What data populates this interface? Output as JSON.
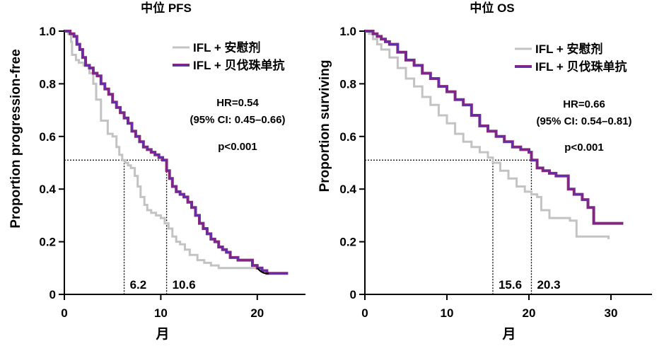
{
  "colors": {
    "placebo": "#c3c3c3",
    "bev_outer": "#8a2a72",
    "bev_inner": "#5a2bbf",
    "axis": "#000000",
    "black_tail": "#000000"
  },
  "chart_data": [
    {
      "type": "line",
      "title": "中位 PFS",
      "xlabel": "月",
      "ylabel": "Proportion progression-free",
      "xlim": [
        0,
        25
      ],
      "ylim": [
        0,
        1.0
      ],
      "xticks": [
        0,
        10,
        20
      ],
      "yticks": [
        0,
        0.2,
        0.4,
        0.6,
        0.8,
        1.0
      ],
      "ytick_labels": [
        "0",
        "0.2",
        "0.4",
        "0.6",
        "0.8",
        "1.0"
      ],
      "legend": [
        "IFL + 安慰剂",
        "IFL + 贝伐珠单抗"
      ],
      "stats": [
        "HR=0.54",
        "(95% CI: 0.45–0.66)",
        "p<0.001"
      ],
      "median_line_y": 0.51,
      "medians": [
        {
          "x": 6.2,
          "label": "6.2"
        },
        {
          "x": 10.6,
          "label": "10.6"
        }
      ],
      "series": [
        {
          "name": "IFL + 安慰剂",
          "x": [
            0,
            0.4,
            0.7,
            0.8,
            1.2,
            1.5,
            2.0,
            2.6,
            3.0,
            3.3,
            3.8,
            4.5,
            5.0,
            5.4,
            5.7,
            6.0,
            6.3,
            6.6,
            6.9,
            7.3,
            7.6,
            7.9,
            8.3,
            8.6,
            9.0,
            9.5,
            10.0,
            10.4,
            10.8,
            11.2,
            11.6,
            12.0,
            12.5,
            13.0,
            13.8,
            14.5,
            15.2,
            16.0,
            17.0,
            18.0,
            19.0,
            20.0,
            20.5
          ],
          "y": [
            1.0,
            0.99,
            0.96,
            0.91,
            0.89,
            0.88,
            0.87,
            0.84,
            0.8,
            0.74,
            0.66,
            0.61,
            0.6,
            0.56,
            0.53,
            0.51,
            0.5,
            0.49,
            0.48,
            0.45,
            0.41,
            0.37,
            0.34,
            0.32,
            0.31,
            0.3,
            0.29,
            0.27,
            0.25,
            0.22,
            0.2,
            0.19,
            0.17,
            0.15,
            0.13,
            0.12,
            0.11,
            0.1,
            0.1,
            0.1,
            0.1,
            0.1,
            0.09
          ]
        },
        {
          "name": "IFL + 贝伐珠单抗",
          "x": [
            0,
            0.3,
            0.6,
            1.0,
            1.3,
            1.6,
            1.9,
            2.2,
            2.6,
            3.0,
            3.4,
            3.8,
            4.2,
            4.6,
            5.0,
            5.4,
            5.8,
            6.2,
            6.6,
            7.0,
            7.4,
            7.8,
            8.2,
            8.6,
            9.0,
            9.4,
            9.8,
            10.2,
            10.6,
            10.9,
            11.2,
            11.6,
            12.0,
            12.4,
            12.8,
            13.2,
            13.6,
            14.0,
            14.4,
            14.8,
            15.2,
            15.6,
            16.0,
            16.4,
            16.8,
            17.2,
            17.6,
            18.0,
            18.5,
            19.0,
            19.5,
            20.0,
            20.5,
            21.0,
            21.5,
            22.0,
            22.5,
            23.2
          ],
          "y": [
            1.0,
            1.0,
            0.99,
            0.98,
            0.95,
            0.93,
            0.9,
            0.87,
            0.86,
            0.84,
            0.83,
            0.8,
            0.78,
            0.76,
            0.73,
            0.71,
            0.69,
            0.67,
            0.65,
            0.62,
            0.6,
            0.58,
            0.56,
            0.55,
            0.54,
            0.53,
            0.52,
            0.51,
            0.47,
            0.44,
            0.41,
            0.39,
            0.38,
            0.37,
            0.35,
            0.33,
            0.3,
            0.27,
            0.25,
            0.23,
            0.21,
            0.2,
            0.18,
            0.17,
            0.16,
            0.14,
            0.14,
            0.13,
            0.13,
            0.13,
            0.11,
            0.1,
            0.09,
            0.08,
            0.08,
            0.08,
            0.08,
            0.08
          ]
        }
      ]
    },
    {
      "type": "line",
      "title": "中位 OS",
      "xlabel": "月",
      "ylabel": "Proportion surviving",
      "xlim": [
        0,
        35
      ],
      "ylim": [
        0,
        1.0
      ],
      "xticks": [
        0,
        10,
        20,
        30
      ],
      "yticks": [
        0,
        0.2,
        0.4,
        0.6,
        0.8,
        1.0
      ],
      "ytick_labels": [
        "0",
        "0.2",
        "0.4",
        "0.6",
        "0.8",
        "1.0"
      ],
      "legend": [
        "IFL + 安慰剂",
        "IFL + 贝伐珠单抗"
      ],
      "stats": [
        "HR=0.66",
        "(95% CI: 0.54–0.81)",
        "p<0.001"
      ],
      "median_line_y": 0.51,
      "medians": [
        {
          "x": 15.6,
          "label": "15.6"
        },
        {
          "x": 20.3,
          "label": "20.3"
        }
      ],
      "series": [
        {
          "name": "IFL + 安慰剂",
          "x": [
            0,
            0.5,
            1.0,
            1.5,
            2.0,
            3.0,
            4.0,
            5.0,
            6.0,
            7.0,
            8.0,
            9.0,
            10.0,
            11.0,
            12.0,
            13.0,
            14.0,
            15.0,
            15.6,
            16.5,
            17.5,
            18.5,
            19.5,
            20.3,
            21.0,
            21.5,
            22.5,
            23.5,
            25.0,
            25.8,
            27.0,
            28.5,
            29.7
          ],
          "y": [
            1.0,
            0.99,
            0.97,
            0.95,
            0.93,
            0.9,
            0.86,
            0.82,
            0.79,
            0.75,
            0.72,
            0.68,
            0.65,
            0.61,
            0.58,
            0.56,
            0.54,
            0.52,
            0.5,
            0.47,
            0.44,
            0.41,
            0.39,
            0.38,
            0.37,
            0.32,
            0.29,
            0.29,
            0.28,
            0.22,
            0.22,
            0.22,
            0.21
          ]
        },
        {
          "name": "IFL + 贝伐珠单抗",
          "x": [
            0,
            0.5,
            1.0,
            1.5,
            2.0,
            2.5,
            3.0,
            4.0,
            5.0,
            6.0,
            7.0,
            8.0,
            9.0,
            10.0,
            11.0,
            12.0,
            13.0,
            14.0,
            15.0,
            16.0,
            17.0,
            18.0,
            19.0,
            20.0,
            20.3,
            21.0,
            21.7,
            22.5,
            23.3,
            24.0,
            24.8,
            25.5,
            26.5,
            27.2,
            27.9,
            29.0,
            31.5
          ],
          "y": [
            1.0,
            1.0,
            0.99,
            0.98,
            0.97,
            0.96,
            0.95,
            0.92,
            0.89,
            0.87,
            0.84,
            0.82,
            0.79,
            0.77,
            0.74,
            0.72,
            0.68,
            0.64,
            0.62,
            0.6,
            0.58,
            0.56,
            0.55,
            0.54,
            0.51,
            0.48,
            0.47,
            0.46,
            0.45,
            0.45,
            0.4,
            0.38,
            0.36,
            0.33,
            0.27,
            0.27,
            0.27
          ]
        }
      ]
    }
  ]
}
